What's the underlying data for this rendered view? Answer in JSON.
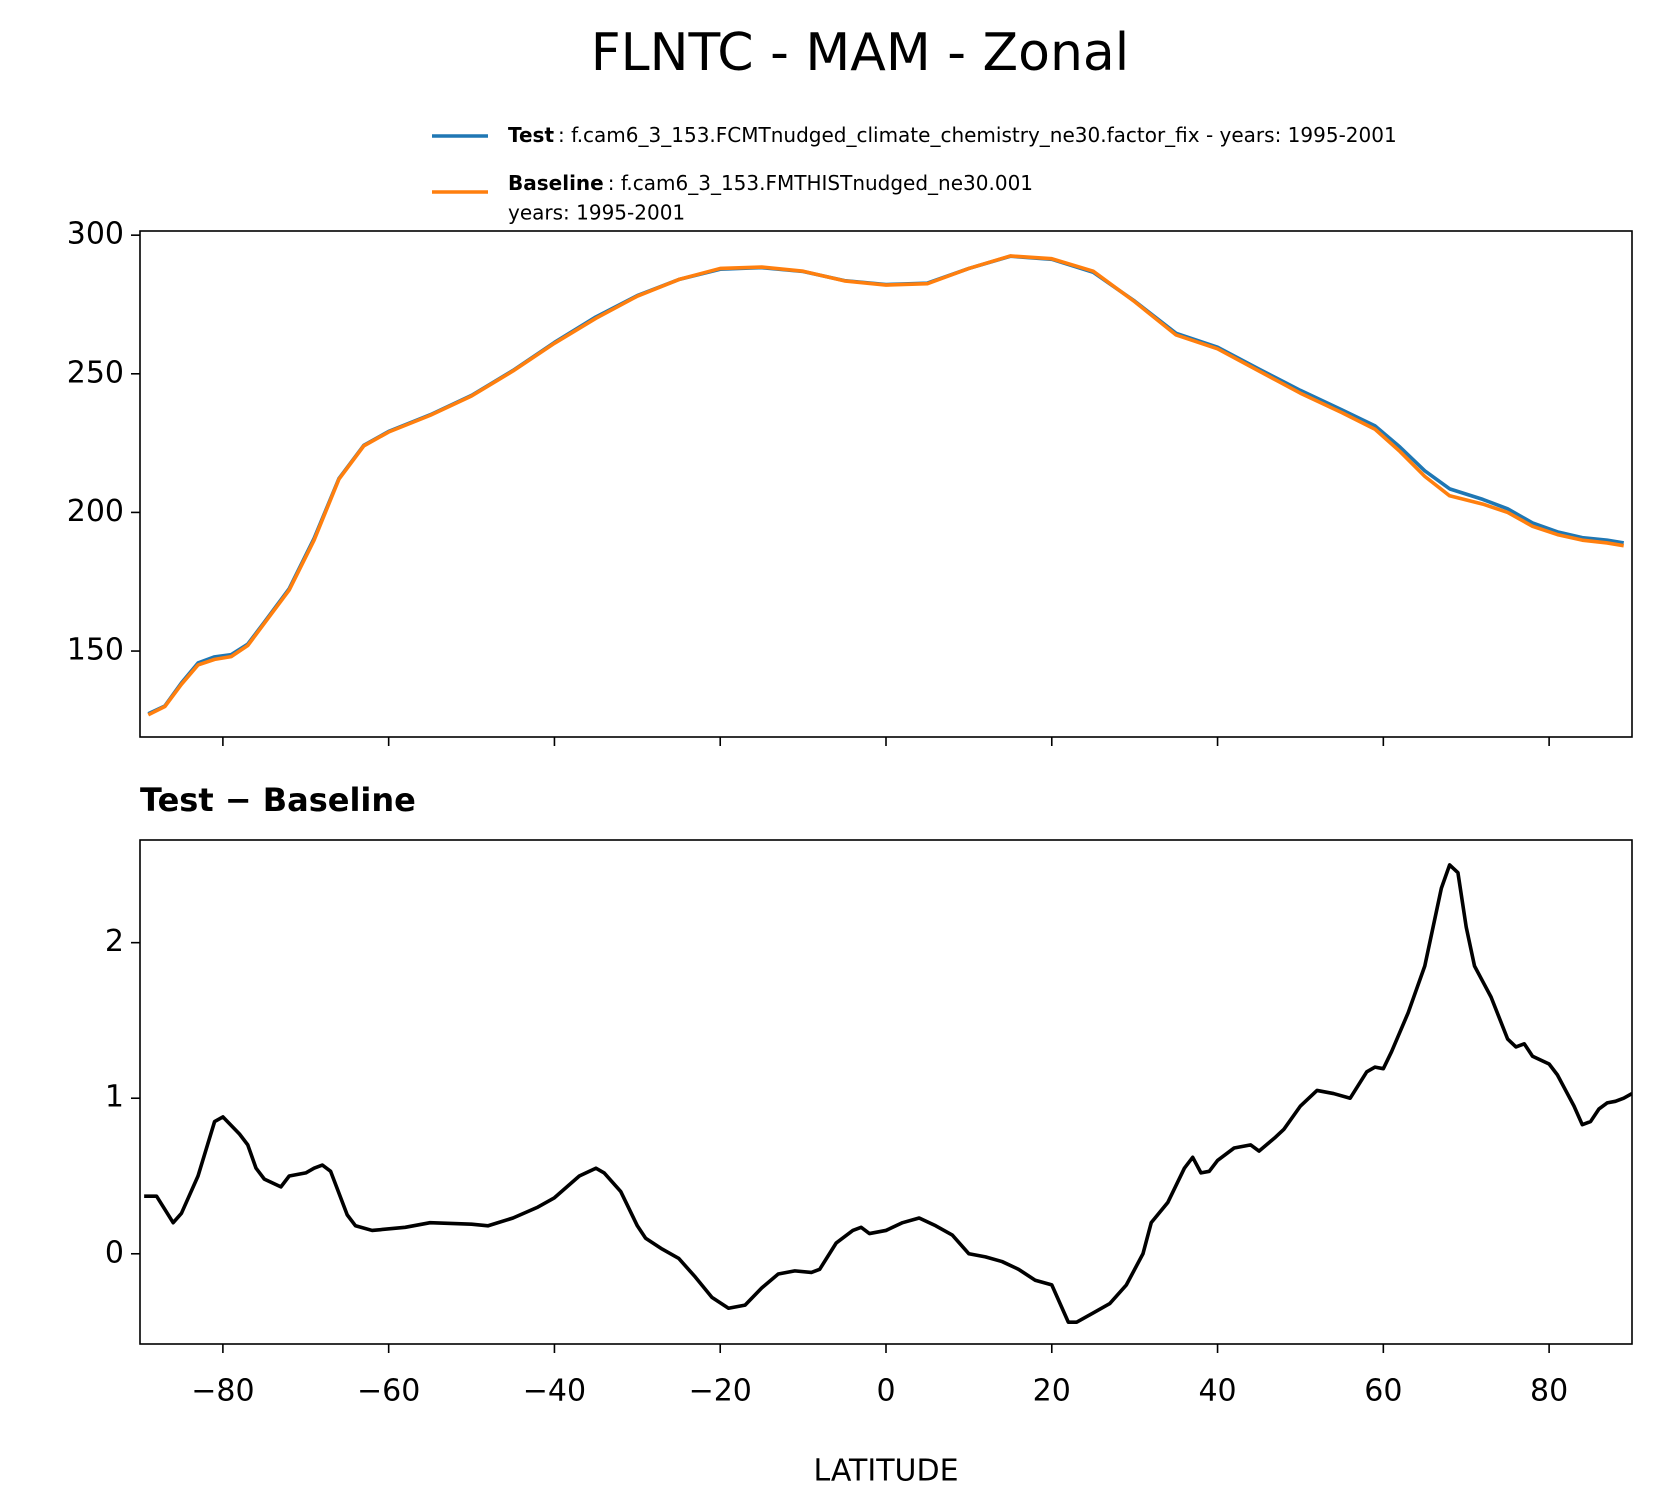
{
  "title": "FLNTC - MAM - Zonal",
  "chart_data": [
    {
      "type": "line",
      "xlim": [
        -90,
        90
      ],
      "ylim": [
        119,
        301.5
      ],
      "yticks": [
        150,
        200,
        250,
        300
      ],
      "xticks": [
        -80,
        -60,
        -40,
        -20,
        0,
        20,
        40,
        60,
        80
      ],
      "xtick_labels": false,
      "legend": "top",
      "x": [
        -89,
        -87,
        -85,
        -83,
        -81,
        -79,
        -77,
        -75,
        -72,
        -69,
        -66,
        -63,
        -60,
        -55,
        -50,
        -45,
        -40,
        -35,
        -30,
        -25,
        -20,
        -15,
        -10,
        -5,
        0,
        5,
        10,
        15,
        20,
        25,
        30,
        35,
        40,
        45,
        50,
        55,
        59,
        62,
        65,
        68,
        72,
        75,
        78,
        81,
        84,
        87,
        89
      ],
      "series": [
        {
          "name": "Test",
          "description": [
            ": f.cam6_3_153.FCMTnudged_climate_chemistry_ne30.factor_fix - years: 1995-2001"
          ],
          "color": "#1f77b4",
          "values": [
            127.4,
            130.2,
            138.5,
            145.7,
            147.9,
            148.7,
            152.5,
            160.4,
            172.5,
            190.6,
            212.2,
            224.2,
            229.2,
            235.2,
            242.2,
            251.2,
            261.3,
            270.5,
            278.2,
            284.0,
            287.7,
            288.3,
            286.9,
            283.6,
            282.2,
            282.7,
            288.0,
            292.4,
            291.3,
            286.6,
            276.2,
            264.6,
            259.6,
            251.7,
            244.0,
            237.0,
            231.2,
            223.6,
            215.0,
            208.5,
            204.7,
            201.3,
            196.2,
            193.0,
            190.9,
            190.0,
            189.0
          ]
        },
        {
          "name": "Baseline",
          "description": [
            ": f.cam6_3_153.FMTHISTnudged_ne30.001",
            "years: 1995-2001"
          ],
          "color": "#ff7f0e",
          "values": [
            127,
            130,
            138,
            145,
            147,
            148,
            152,
            160,
            172,
            190,
            212,
            224,
            229,
            235,
            242,
            251,
            261,
            270,
            278,
            284,
            288,
            288.5,
            287,
            283.5,
            282,
            282.5,
            288,
            292.5,
            291.5,
            287,
            276,
            264,
            259,
            251,
            243,
            236,
            230,
            222,
            213,
            206,
            203,
            200,
            195,
            192,
            190,
            189,
            188
          ]
        }
      ]
    },
    {
      "type": "line",
      "title": "Test − Baseline",
      "xlabel": "LATITUDE",
      "xlim": [
        -90,
        90
      ],
      "ylim": [
        -0.58,
        2.66
      ],
      "yticks": [
        0,
        1,
        2
      ],
      "xticks": [
        {
          "value": -80,
          "label": "−80"
        },
        {
          "value": -60,
          "label": "−60"
        },
        {
          "value": -40,
          "label": "−40"
        },
        {
          "value": -20,
          "label": "−20"
        },
        0,
        20,
        40,
        60,
        80
      ],
      "xtick_labels": true,
      "x": [
        -89.5,
        -88,
        -86,
        -85,
        -83,
        -81,
        -80,
        -78,
        -77,
        -76,
        -75,
        -73,
        -72,
        -70,
        -69,
        -68,
        -67,
        -65,
        -64,
        -62,
        -58,
        -55,
        -50,
        -48,
        -45,
        -42,
        -40,
        -37,
        -35,
        -34,
        -32,
        -30,
        -29,
        -27,
        -25,
        -23,
        -21,
        -19,
        -17,
        -15,
        -13,
        -11,
        -9,
        -8,
        -6,
        -4,
        -3,
        -2,
        0,
        2,
        4,
        6,
        8,
        10,
        12,
        14,
        16,
        18,
        20,
        22,
        23,
        25,
        27,
        29,
        31,
        32,
        34,
        36,
        37,
        38,
        39,
        40,
        42,
        44,
        45,
        47,
        48,
        50,
        52,
        54,
        56,
        58,
        59,
        60,
        61,
        63,
        65,
        66,
        67,
        68,
        69,
        70,
        71,
        72,
        73,
        75,
        76,
        77,
        78,
        80,
        81,
        82,
        83,
        84,
        85,
        86,
        87,
        88,
        89,
        90
      ],
      "series": [
        {
          "color": "#000000",
          "values": [
            0.37,
            0.37,
            0.2,
            0.26,
            0.5,
            0.85,
            0.88,
            0.77,
            0.7,
            0.55,
            0.48,
            0.43,
            0.5,
            0.52,
            0.55,
            0.57,
            0.53,
            0.25,
            0.18,
            0.15,
            0.17,
            0.2,
            0.19,
            0.18,
            0.23,
            0.3,
            0.36,
            0.5,
            0.55,
            0.52,
            0.4,
            0.18,
            0.1,
            0.03,
            -0.03,
            -0.15,
            -0.28,
            -0.35,
            -0.33,
            -0.22,
            -0.13,
            -0.11,
            -0.12,
            -0.1,
            0.07,
            0.15,
            0.17,
            0.13,
            0.15,
            0.2,
            0.23,
            0.18,
            0.12,
            0.0,
            -0.02,
            -0.05,
            -0.1,
            -0.17,
            -0.2,
            -0.44,
            -0.44,
            -0.38,
            -0.32,
            -0.2,
            0.0,
            0.2,
            0.33,
            0.55,
            0.62,
            0.52,
            0.53,
            0.6,
            0.68,
            0.7,
            0.66,
            0.75,
            0.8,
            0.95,
            1.05,
            1.03,
            1.0,
            1.17,
            1.2,
            1.19,
            1.3,
            1.55,
            1.85,
            2.1,
            2.35,
            2.5,
            2.45,
            2.1,
            1.85,
            1.75,
            1.65,
            1.38,
            1.33,
            1.35,
            1.27,
            1.22,
            1.15,
            1.05,
            0.95,
            0.83,
            0.85,
            0.93,
            0.97,
            0.98,
            1.0,
            1.03
          ]
        }
      ]
    }
  ]
}
